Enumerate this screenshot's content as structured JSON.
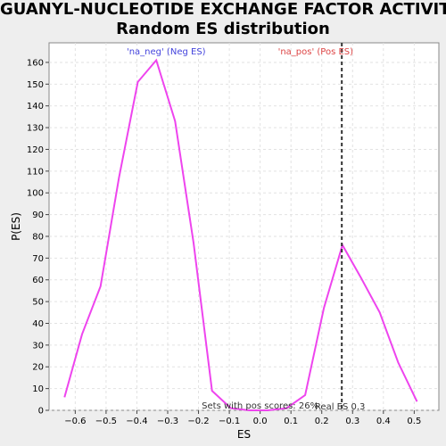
{
  "chart_data": {
    "type": "line",
    "title_lines": [
      "GUANYL-NUCLEOTIDE EXCHANGE FACTOR ACTIVITY:",
      "Random ES distribution"
    ],
    "xlabel": "ES",
    "ylabel": "P(ES)",
    "xlim": [
      -0.685,
      0.58
    ],
    "ylim": [
      0,
      169
    ],
    "x_ticks": [
      -0.6,
      -0.5,
      -0.4,
      -0.3,
      -0.2,
      -0.1,
      0.0,
      0.1,
      0.2,
      0.3,
      0.4,
      0.5
    ],
    "x_tick_labels": [
      "−0.6",
      "−0.5",
      "−0.4",
      "−0.3",
      "−0.2",
      "−0.1",
      "0.0",
      "0.1",
      "0.2",
      "0.3",
      "0.4",
      "0.5"
    ],
    "y_ticks": [
      0,
      10,
      20,
      30,
      40,
      50,
      60,
      70,
      80,
      90,
      100,
      110,
      120,
      130,
      140,
      150,
      160
    ],
    "grid": true,
    "line_color": "#ee44ee",
    "series": [
      {
        "x": [
          -0.635,
          -0.578,
          -0.518,
          -0.458,
          -0.397,
          -0.337,
          -0.276,
          -0.216,
          -0.156,
          -0.095,
          -0.035,
          0.025,
          0.086,
          0.146,
          0.207,
          0.267,
          0.327,
          0.388,
          0.448,
          0.509
        ],
        "values": [
          6,
          35,
          57,
          107,
          151,
          161,
          133,
          77,
          9,
          1,
          0,
          0,
          1,
          7,
          47,
          76,
          61,
          45,
          22,
          4
        ]
      }
    ],
    "real_es": 0.265,
    "real_es_label": "Real ES 0.3",
    "legend": [
      {
        "text": "'na_neg' (Neg ES)",
        "color": "#4444dd"
      },
      {
        "text": "'na_pos' (Pos ES)",
        "color": "#dd4444"
      }
    ],
    "annotation": "Sets with pos scores: 26%"
  }
}
